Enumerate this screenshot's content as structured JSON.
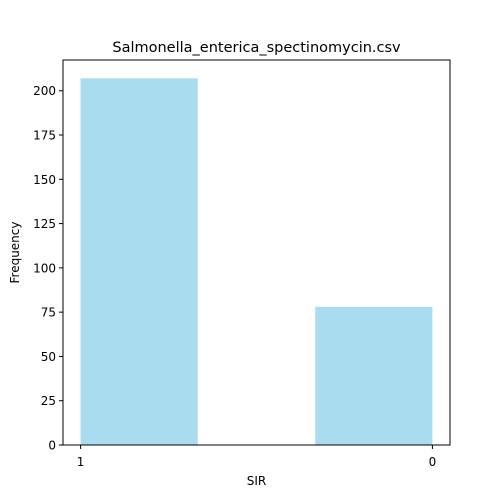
{
  "chart_data": {
    "type": "bar",
    "title": "Salmonella_enterica_spectinomycin.csv",
    "xlabel": "SIR",
    "ylabel": "Frequency",
    "x_ticks": [
      "1",
      "0"
    ],
    "bars": [
      {
        "x_start": 1.0,
        "x_end": 0.667,
        "value": 207
      },
      {
        "x_start": 0.333,
        "x_end": 0.0,
        "value": 78
      }
    ],
    "x_range": [
      1.05,
      -0.05
    ],
    "ylim": [
      0,
      217.35
    ],
    "yticks": [
      0,
      25,
      50,
      75,
      100,
      125,
      150,
      175,
      200
    ],
    "bar_color": "#a8dcee",
    "grid": false
  }
}
